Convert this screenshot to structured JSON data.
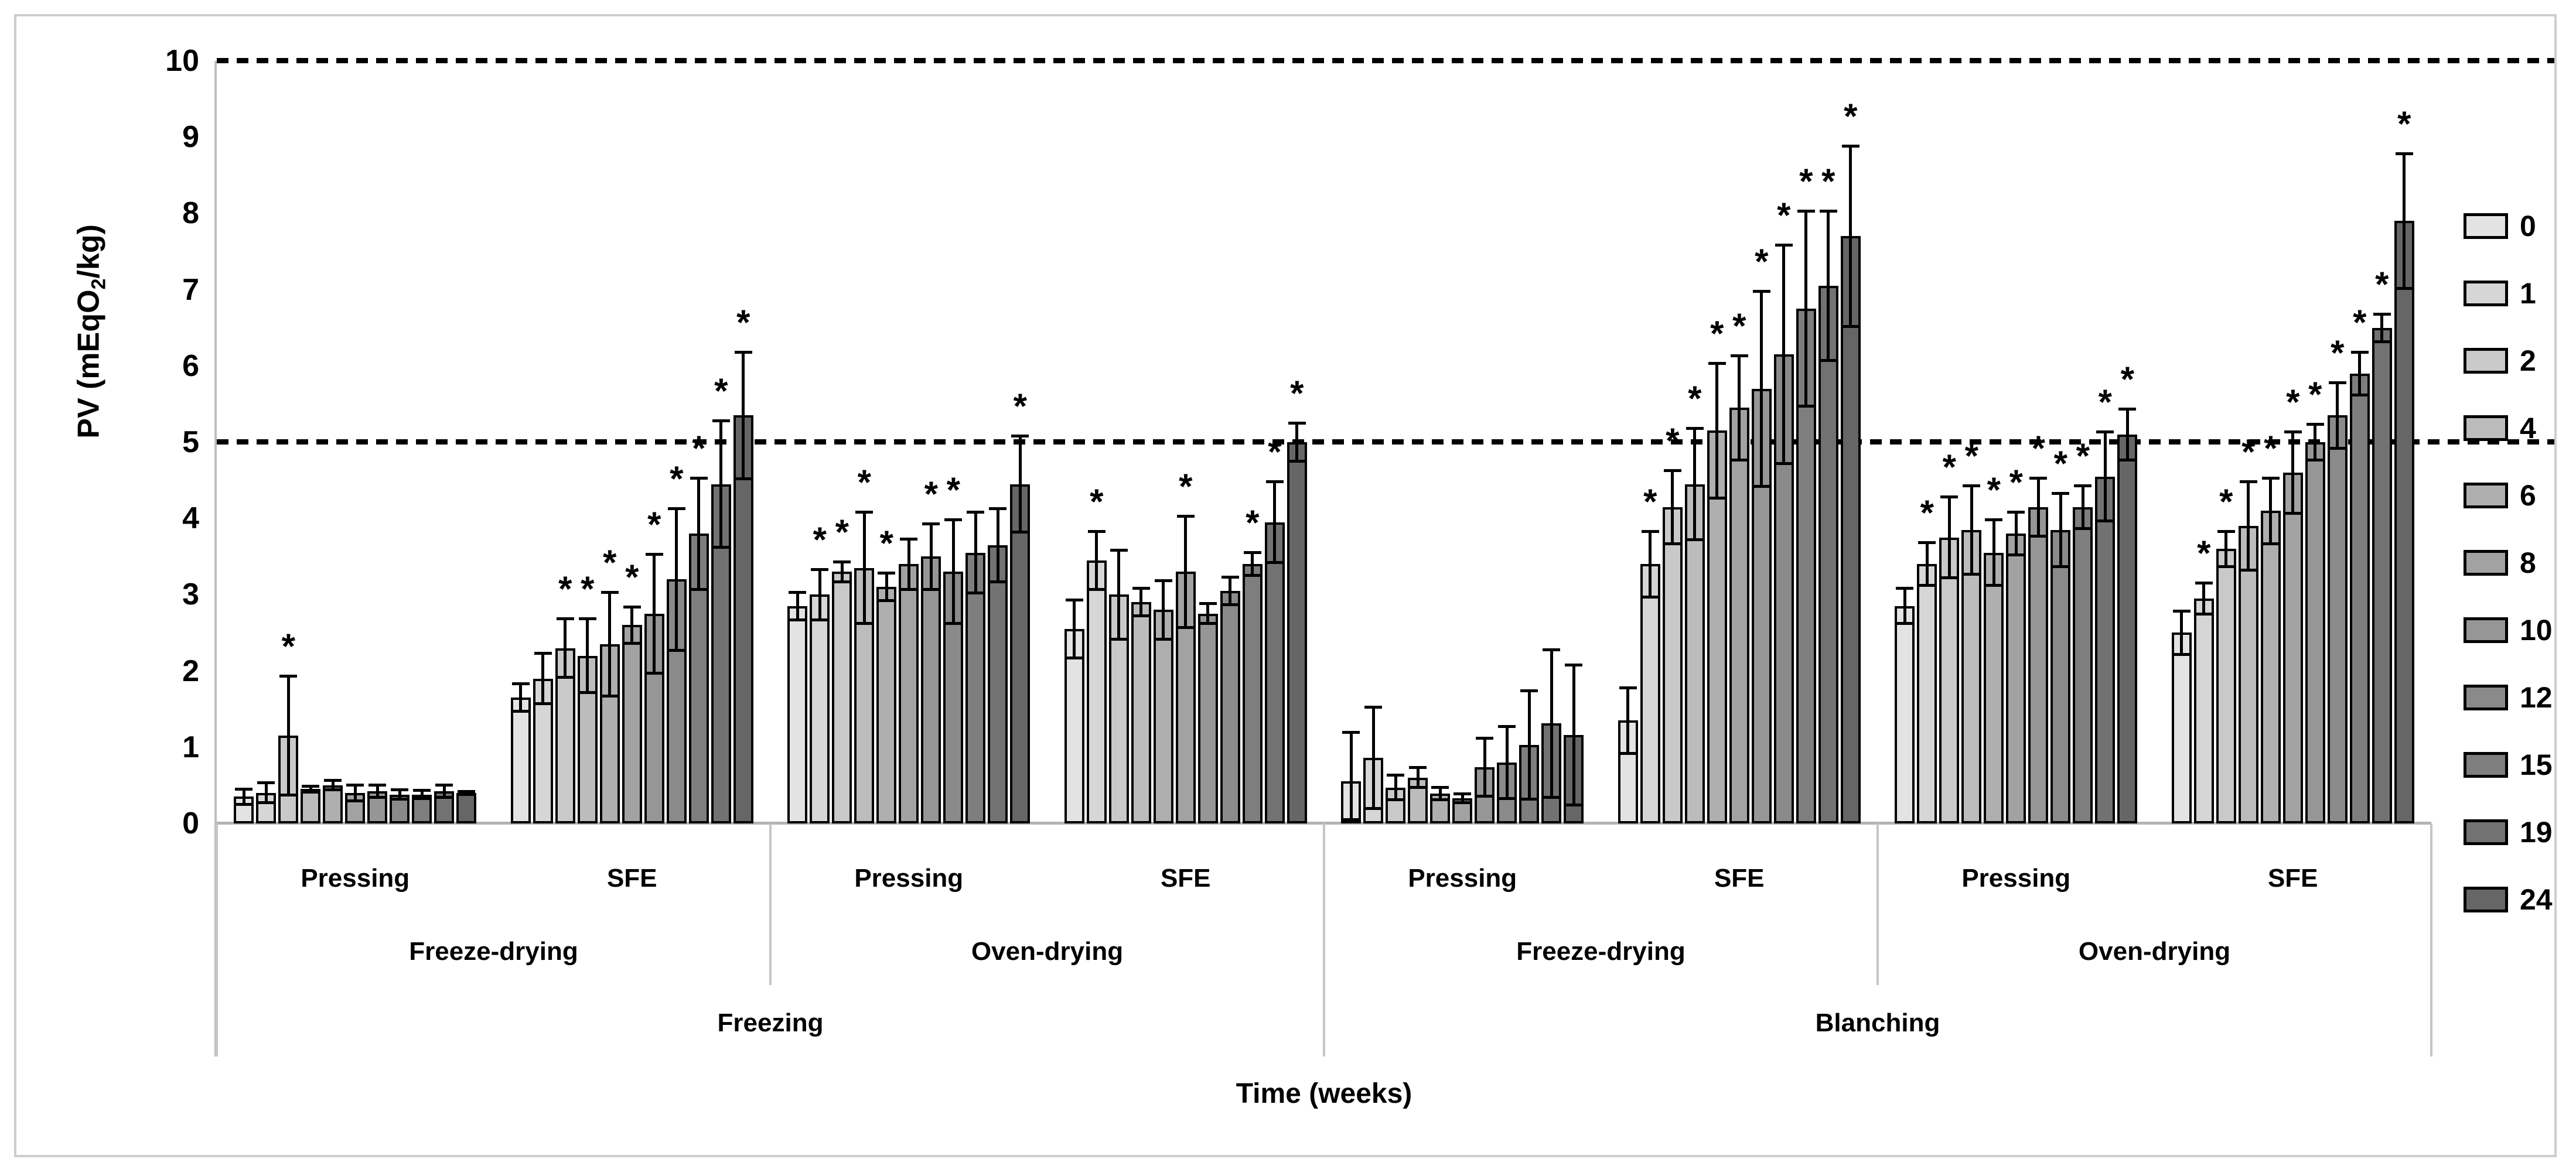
{
  "figure": {
    "y_axis": {
      "title_pre": "PV (mEqO",
      "title_sub": "2",
      "title_post": "/kg)",
      "ticks": [
        "0",
        "1",
        "2",
        "3",
        "4",
        "5",
        "6",
        "7",
        "8",
        "9",
        "10"
      ]
    },
    "x_axis": {
      "title": "Time (weeks)",
      "tier1": [
        "Pressing",
        "SFE",
        "Pressing",
        "SFE",
        "Pressing",
        "SFE",
        "Pressing",
        "SFE"
      ],
      "tier2": [
        "Freeze-drying",
        "Oven-drying",
        "Freeze-drying",
        "Oven-drying"
      ],
      "tier3": [
        "Freezing",
        "Blanching"
      ]
    },
    "legend": {
      "labels": [
        "0",
        "1",
        "2",
        "4",
        "6",
        "8",
        "10",
        "12",
        "15",
        "19",
        "24"
      ]
    },
    "colors": {
      "week_shades": [
        "#e3e3e3",
        "#d6d6d6",
        "#c9c9c9",
        "#bcbcbc",
        "#afafaf",
        "#a2a2a2",
        "#969696",
        "#8a8a8a",
        "#7e7e7e",
        "#727272",
        "#666666"
      ],
      "axis_gray": "#bfbfbf",
      "border_gray": "#cdcdcd",
      "bar_outline": "#000000"
    }
  },
  "chart_data": {
    "type": "bar",
    "title": "",
    "ylabel": "PV (mEqO2/kg)",
    "xlabel": "Time (weeks)",
    "ylim": [
      0,
      10
    ],
    "grid": false,
    "legend_position": "right",
    "reference_lines": [
      5,
      10
    ],
    "weeks": [
      "0",
      "1",
      "2",
      "4",
      "6",
      "8",
      "10",
      "12",
      "15",
      "19",
      "24"
    ],
    "significance_marker": "*",
    "groups": [
      {
        "pretreatment": "Freezing",
        "drying": "Freeze-drying",
        "extraction": "Pressing",
        "values": [
          0.35,
          0.4,
          1.15,
          0.45,
          0.5,
          0.4,
          0.42,
          0.38,
          0.38,
          0.42,
          0.4
        ],
        "errors": [
          0.12,
          0.15,
          0.8,
          0.06,
          0.08,
          0.12,
          0.1,
          0.08,
          0.07,
          0.1,
          0.04
        ],
        "stars": [
          2
        ]
      },
      {
        "pretreatment": "Freezing",
        "drying": "Freeze-drying",
        "extraction": "SFE",
        "values": [
          1.65,
          1.9,
          2.3,
          2.2,
          2.35,
          2.6,
          2.75,
          3.2,
          3.8,
          4.45,
          5.35
        ],
        "errors": [
          0.2,
          0.35,
          0.4,
          0.5,
          0.7,
          0.26,
          0.8,
          0.95,
          0.75,
          0.85,
          0.85
        ],
        "stars": [
          2,
          3,
          4,
          5,
          6,
          7,
          8,
          9,
          10
        ]
      },
      {
        "pretreatment": "Freezing",
        "drying": "Oven-drying",
        "extraction": "Pressing",
        "values": [
          2.85,
          3.0,
          3.3,
          3.35,
          3.1,
          3.4,
          3.5,
          3.3,
          3.55,
          3.65,
          4.45
        ],
        "errors": [
          0.2,
          0.35,
          0.15,
          0.75,
          0.2,
          0.35,
          0.45,
          0.7,
          0.55,
          0.5,
          0.65
        ],
        "stars": [
          1,
          2,
          3,
          4,
          6,
          7,
          10
        ]
      },
      {
        "pretreatment": "Freezing",
        "drying": "Oven-drying",
        "extraction": "SFE",
        "values": [
          2.55,
          3.45,
          3.0,
          2.9,
          2.8,
          3.3,
          2.75,
          3.05,
          3.4,
          3.95,
          5.0
        ],
        "errors": [
          0.4,
          0.4,
          0.6,
          0.2,
          0.4,
          0.75,
          0.15,
          0.2,
          0.17,
          0.55,
          0.27
        ],
        "stars": [
          1,
          5,
          8,
          9,
          10
        ]
      },
      {
        "pretreatment": "Blanching",
        "drying": "Freeze-drying",
        "extraction": "Pressing",
        "values": [
          0.55,
          0.86,
          0.47,
          0.6,
          0.39,
          0.33,
          0.74,
          0.8,
          1.03,
          1.31,
          1.16
        ],
        "errors": [
          0.66,
          0.68,
          0.18,
          0.15,
          0.1,
          0.08,
          0.4,
          0.49,
          0.73,
          0.99,
          0.94
        ],
        "stars": []
      },
      {
        "pretreatment": "Blanching",
        "drying": "Freeze-drying",
        "extraction": "SFE",
        "values": [
          1.35,
          3.4,
          4.15,
          4.45,
          5.15,
          5.45,
          5.7,
          6.15,
          6.75,
          7.05,
          7.7
        ],
        "errors": [
          0.45,
          0.45,
          0.5,
          0.75,
          0.9,
          0.7,
          1.3,
          1.45,
          1.3,
          1.0,
          1.2
        ],
        "stars": [
          1,
          2,
          3,
          4,
          5,
          6,
          7,
          8,
          9,
          10
        ]
      },
      {
        "pretreatment": "Blanching",
        "drying": "Oven-drying",
        "extraction": "Pressing",
        "values": [
          2.85,
          3.4,
          3.75,
          3.85,
          3.55,
          3.8,
          4.15,
          3.85,
          4.15,
          4.55,
          5.1
        ],
        "errors": [
          0.25,
          0.3,
          0.55,
          0.6,
          0.45,
          0.3,
          0.4,
          0.5,
          0.3,
          0.6,
          0.35
        ],
        "stars": [
          1,
          2,
          3,
          4,
          5,
          6,
          7,
          8,
          9,
          10
        ]
      },
      {
        "pretreatment": "Blanching",
        "drying": "Oven-drying",
        "extraction": "SFE",
        "values": [
          2.5,
          2.95,
          3.6,
          3.9,
          4.1,
          4.6,
          5.0,
          5.35,
          5.9,
          6.5,
          7.9
        ],
        "errors": [
          0.3,
          0.22,
          0.25,
          0.6,
          0.45,
          0.55,
          0.25,
          0.45,
          0.3,
          0.2,
          0.9
        ],
        "stars": [
          1,
          2,
          3,
          4,
          5,
          6,
          7,
          8,
          9,
          10
        ]
      }
    ]
  }
}
